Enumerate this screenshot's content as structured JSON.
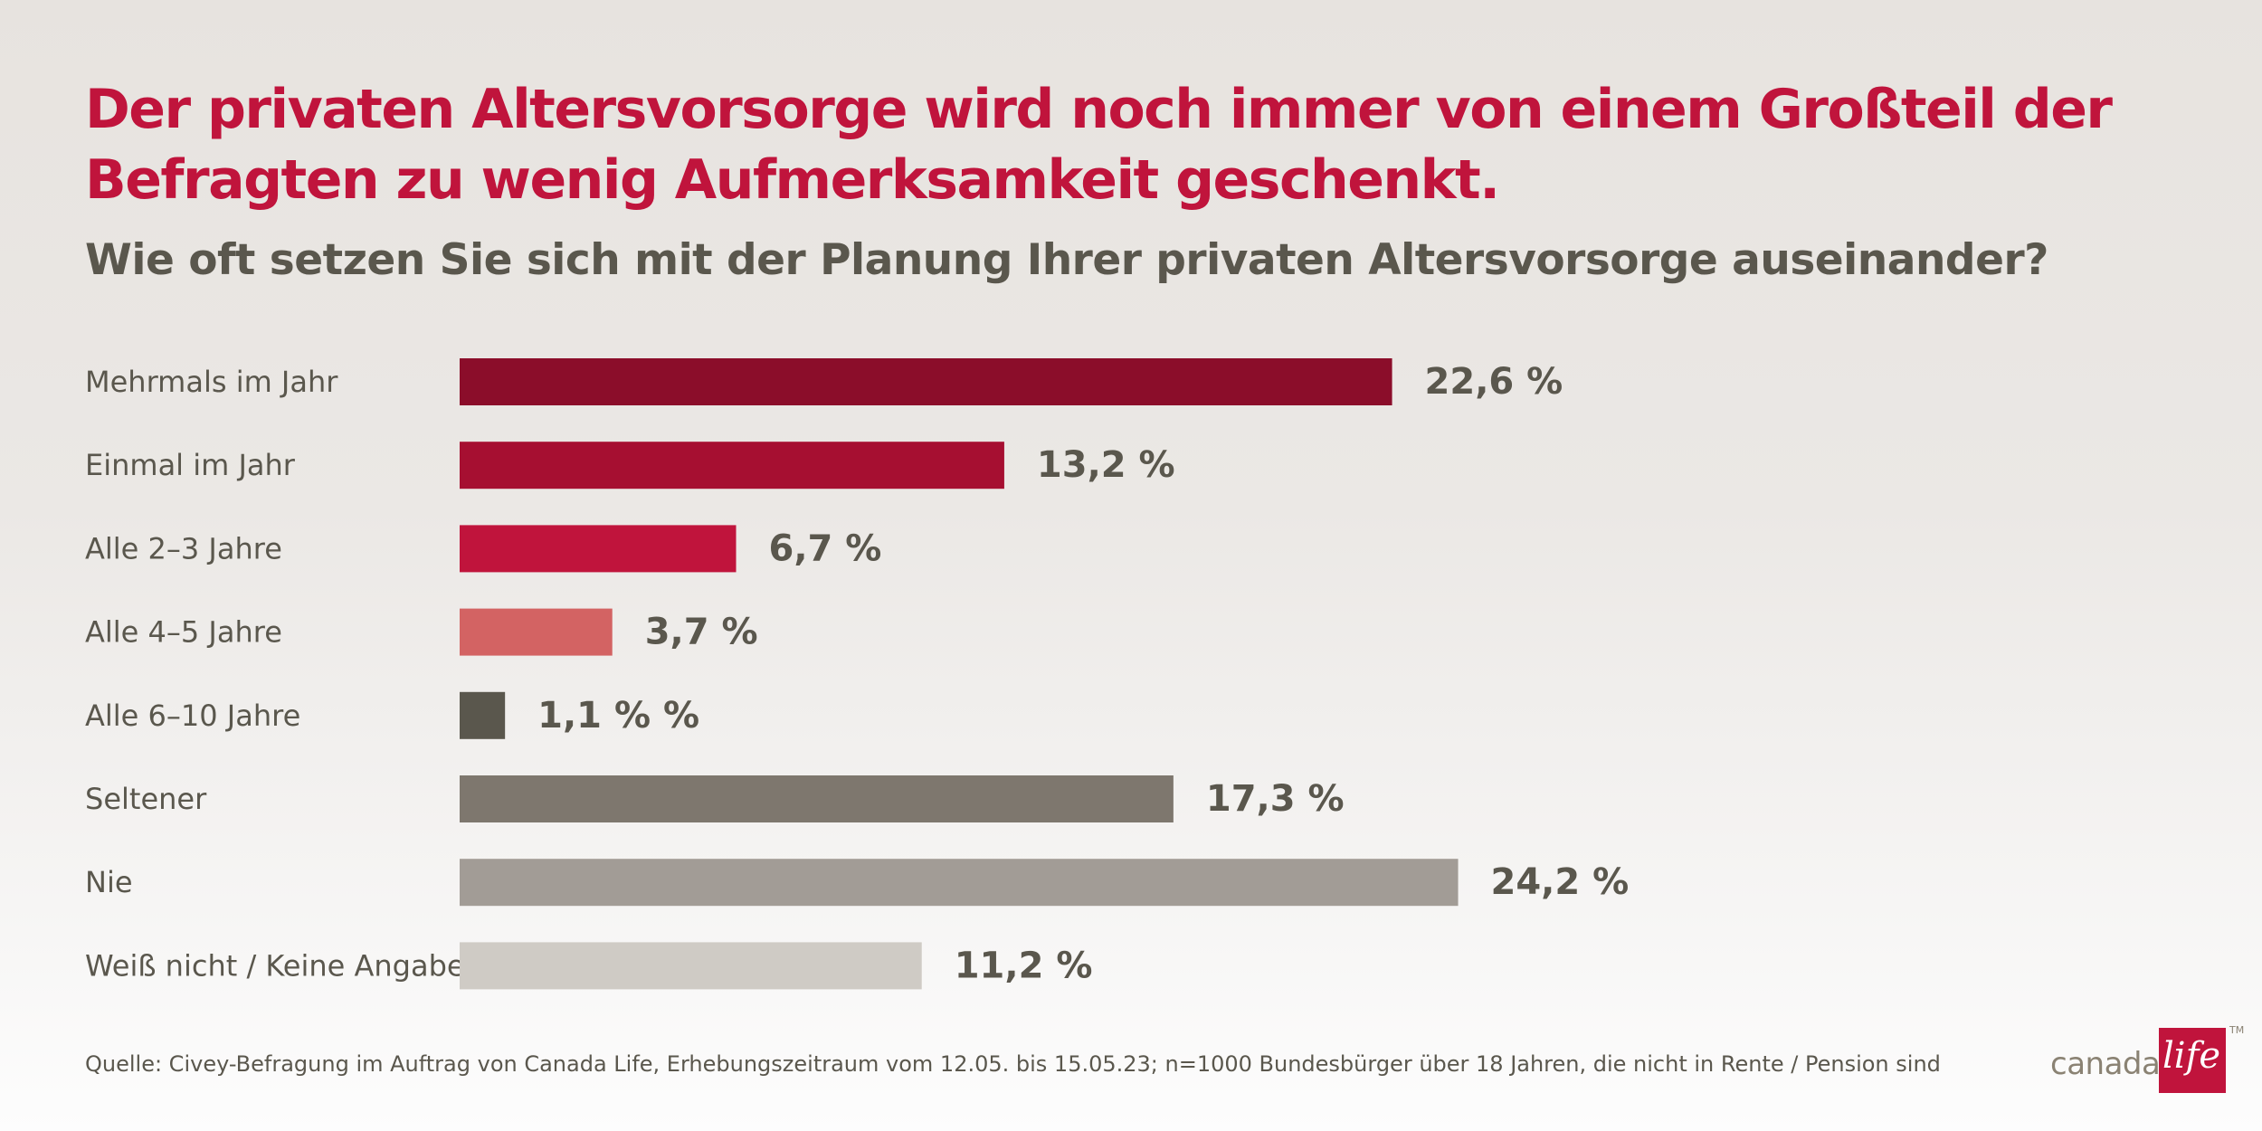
{
  "title": "Der privaten Altersvorsorge wird noch immer von einem Großteil der Befragten zu wenig Aufmerksamkeit geschenkt.",
  "subtitle": "Wie oft setzen Sie sich mit der Planung Ihrer privaten Altersvorsorge auseinander?",
  "source": "Quelle: Civey-Befragung im Auftrag von Canada Life, Erhebungszeitraum vom 12.05. bis 15.05.23; n=1000 Bundesbürger über 18 Jahren, die nicht in Rente / Pension sind",
  "logo": {
    "word": "canada",
    "box_text": "life",
    "tm": "TM",
    "color": "#c0143c"
  },
  "chart_data": {
    "type": "bar",
    "orientation": "horizontal",
    "categories": [
      "Mehrmals im Jahr",
      "Einmal im Jahr",
      "Alle 2–3 Jahre",
      "Alle 4–5 Jahre",
      "Alle 6–10 Jahre",
      "Seltener",
      "Nie",
      "Weiß nicht / Keine Angabe"
    ],
    "values": [
      22.6,
      13.2,
      6.7,
      3.7,
      1.1,
      17.3,
      24.2,
      11.2
    ],
    "value_labels": [
      "22,6 %",
      "13,2 %",
      "6,7 %",
      "3,7 %",
      "1,1 % %",
      "17,3 %",
      "24,2 %",
      "11,2 %"
    ],
    "colors": [
      "#8b0d2a",
      "#a60f31",
      "#c0143c",
      "#d36363",
      "#5a574d",
      "#7e776e",
      "#a29c96",
      "#cfcbc5"
    ],
    "unit": "%",
    "grid": false,
    "legend": false
  }
}
